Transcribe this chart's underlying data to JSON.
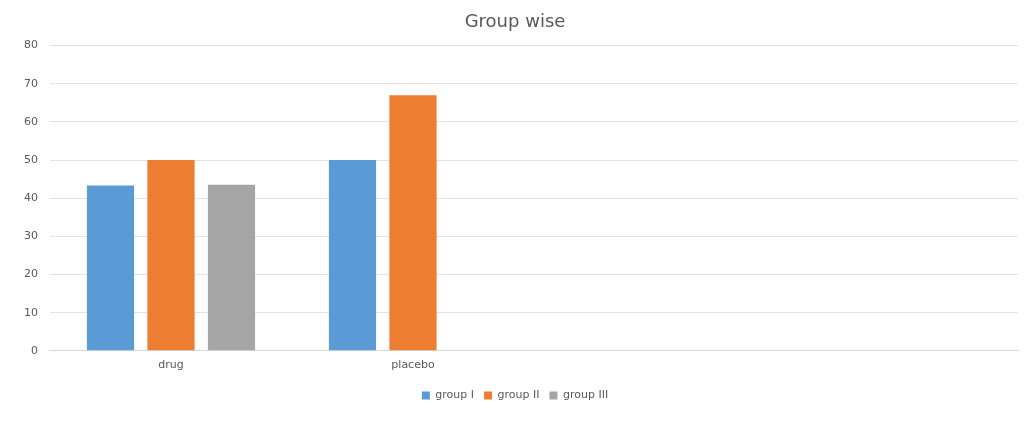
{
  "chart_data": {
    "type": "bar",
    "title": "Group wise",
    "categories": [
      "drug",
      "placebo",
      null,
      null
    ],
    "series": [
      {
        "name": "group I",
        "color": "#5b9bd5",
        "values": [
          43.3,
          50,
          null,
          null
        ]
      },
      {
        "name": "group II",
        "color": "#ed7d31",
        "values": [
          50,
          67,
          null,
          null
        ]
      },
      {
        "name": "group III",
        "color": "#a5a5a5",
        "values": [
          43.5,
          null,
          null,
          null
        ]
      }
    ],
    "ylim": [
      0,
      80
    ],
    "yticks": [
      0,
      10,
      20,
      30,
      40,
      50,
      60,
      70,
      80
    ],
    "grid": "y",
    "legend": "bottom"
  }
}
